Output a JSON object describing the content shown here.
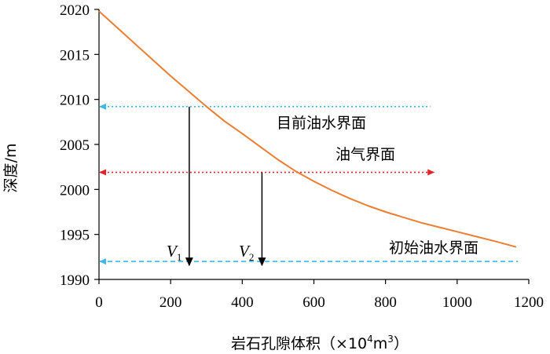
{
  "chart_data": {
    "type": "line",
    "xlabel": "岩石孔隙体积（×10",
    "xlabel_sup1": "4",
    "xlabel_unit": "m",
    "xlabel_sup2": "3",
    "xlabel_close": "）",
    "ylabel": "深度/m",
    "xlim": [
      0,
      1200
    ],
    "ylim": [
      1990,
      2020
    ],
    "x_ticks": [
      "0",
      "200",
      "400",
      "600",
      "800",
      "1000",
      "1200"
    ],
    "y_ticks": [
      "1990",
      "1995",
      "2000",
      "2005",
      "2010",
      "2015",
      "2020"
    ],
    "x_tick_values": [
      0,
      200,
      400,
      600,
      800,
      1000,
      1200
    ],
    "y_tick_values": [
      1990,
      1995,
      2000,
      2005,
      2010,
      2015,
      2020
    ],
    "grid": false,
    "series": [
      {
        "color": "#ED7D31",
        "x": [
          0,
          50,
          100,
          150,
          200,
          250,
          300,
          350,
          400,
          455,
          500,
          550,
          600,
          650,
          700,
          750,
          800,
          850,
          900,
          950,
          1000,
          1050,
          1100,
          1165
        ],
        "y": [
          2019.8,
          2018.0,
          2016.2,
          2014.4,
          2012.6,
          2010.9,
          2009.2,
          2007.6,
          2006.2,
          2004.6,
          2003.3,
          2002.0,
          2000.9,
          1999.9,
          1999.0,
          1998.2,
          1997.5,
          1996.9,
          1996.3,
          1995.8,
          1995.3,
          1994.8,
          1994.3,
          1993.6
        ]
      }
    ],
    "hlines": [
      {
        "label": "目前油水界面",
        "y": 2009.2,
        "x_end": 925,
        "color": "#3FB8E8",
        "style": "dotted",
        "arrow": "start"
      },
      {
        "label": "油气界面",
        "y": 2001.9,
        "x_end": 935,
        "color": "#E8202A",
        "style": "dotted",
        "arrow": "both"
      },
      {
        "label": "初始油水界面",
        "y": 1992.0,
        "x_end": 1170,
        "color": "#3FB8E8",
        "style": "dashed",
        "arrow": "start"
      }
    ],
    "vlines": [
      {
        "label": "V",
        "sub": "1",
        "x": 252,
        "y_top": 2009.2,
        "y_bottom": 1992.0
      },
      {
        "label": "V",
        "sub": "2",
        "x": 455,
        "y_top": 2001.9,
        "y_bottom": 1992.0
      }
    ]
  }
}
